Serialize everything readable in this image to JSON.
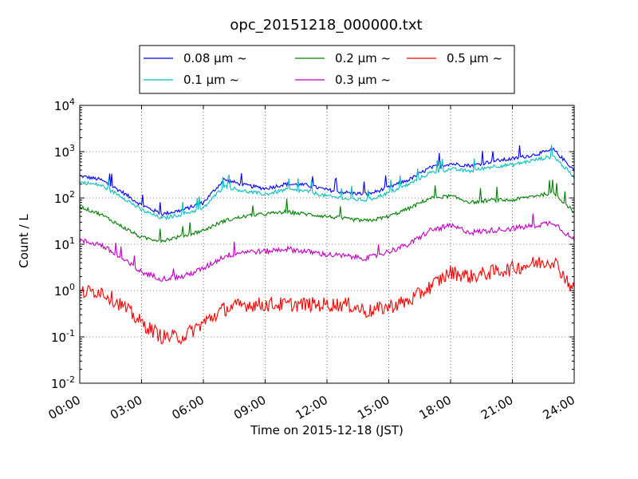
{
  "chart_data": {
    "type": "line",
    "title": "opc_20151218_000000.txt",
    "xlabel": "Time on 2015-12-18 (JST)",
    "ylabel": "Count / L",
    "xlim": [
      "2015-12-18 00:00",
      "2015-12-19 00:00"
    ],
    "ylim": [
      0.01,
      10000
    ],
    "yscale": "log",
    "grid": true,
    "legend_position": "top-center, above plot, 3 columns",
    "x_tick_labels": [
      "00:00",
      "03:00",
      "06:00",
      "09:00",
      "12:00",
      "15:00",
      "18:00",
      "21:00",
      "24:00"
    ],
    "y_tick_labels": [
      {
        "base": "10",
        "exp": "-2"
      },
      {
        "base": "10",
        "exp": "-1"
      },
      {
        "base": "10",
        "exp": "0"
      },
      {
        "base": "10",
        "exp": "1"
      },
      {
        "base": "10",
        "exp": "2"
      },
      {
        "base": "10",
        "exp": "3"
      },
      {
        "base": "10",
        "exp": "4"
      }
    ],
    "x_hours": [
      0,
      1,
      2,
      3,
      4,
      5,
      6,
      7,
      8,
      9,
      10,
      11,
      12,
      13,
      14,
      15,
      16,
      17,
      18,
      19,
      20,
      21,
      22,
      23,
      24
    ],
    "series": [
      {
        "name": "0.08 μm ~",
        "color": "#0000ff",
        "values": [
          300,
          250,
          140,
          70,
          45,
          55,
          80,
          250,
          190,
          160,
          200,
          190,
          150,
          130,
          120,
          170,
          250,
          450,
          550,
          500,
          620,
          700,
          850,
          1100,
          400
        ]
      },
      {
        "name": "0.1 μm ~",
        "color": "#00bfbf",
        "values": [
          220,
          190,
          110,
          55,
          36,
          45,
          60,
          180,
          140,
          120,
          150,
          140,
          110,
          95,
          90,
          130,
          200,
          350,
          420,
          380,
          480,
          520,
          650,
          800,
          280
        ]
      },
      {
        "name": "0.2 μm ~",
        "color": "#008000",
        "values": [
          65,
          45,
          25,
          14,
          12,
          15,
          20,
          32,
          40,
          45,
          50,
          45,
          40,
          35,
          32,
          40,
          60,
          100,
          110,
          80,
          90,
          90,
          110,
          130,
          50
        ]
      },
      {
        "name": "0.3 μm ~",
        "color": "#bf00bf",
        "values": [
          12,
          10,
          5,
          2.5,
          1.8,
          2,
          3,
          5.5,
          7,
          7,
          8,
          7,
          6,
          5.5,
          5,
          7,
          10,
          20,
          25,
          18,
          20,
          22,
          25,
          30,
          12
        ]
      },
      {
        "name": "0.5 μm ~",
        "color": "#ff0000",
        "values": [
          0.9,
          1.0,
          0.5,
          0.2,
          0.1,
          0.1,
          0.2,
          0.4,
          0.5,
          0.5,
          0.5,
          0.5,
          0.5,
          0.5,
          0.35,
          0.45,
          0.6,
          1.2,
          2.5,
          2.0,
          2.5,
          3.0,
          3.8,
          4.5,
          1.0
        ]
      }
    ]
  }
}
